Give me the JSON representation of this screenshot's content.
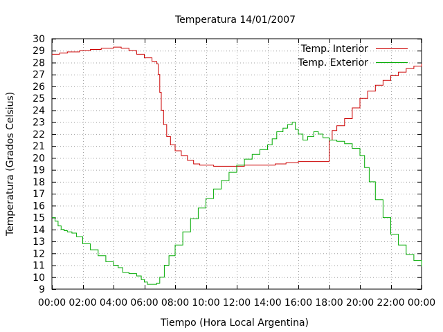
{
  "chart_data": {
    "type": "line",
    "title": "Temperatura 14/01/2007",
    "xlabel": "Tiempo (Hora Local Argentina)",
    "ylabel": "Temperatura (Grados Celsius)",
    "xlim": [
      0,
      24
    ],
    "ylim": [
      9,
      30
    ],
    "xticks": [
      0,
      2,
      4,
      6,
      8,
      10,
      12,
      14,
      16,
      18,
      20,
      22,
      24
    ],
    "x_tick_labels": [
      "00:00",
      "02:00",
      "04:00",
      "06:00",
      "08:00",
      "10:00",
      "12:00",
      "14:00",
      "16:00",
      "18:00",
      "20:00",
      "22:00",
      "00:00"
    ],
    "yticks": [
      9,
      10,
      11,
      12,
      13,
      14,
      15,
      16,
      17,
      18,
      19,
      20,
      21,
      22,
      23,
      24,
      25,
      26,
      27,
      28,
      29,
      30
    ],
    "y_tick_labels": [
      "9",
      "10",
      "11",
      "12",
      "13",
      "14",
      "15",
      "16",
      "17",
      "18",
      "19",
      "20",
      "21",
      "22",
      "23",
      "24",
      "25",
      "26",
      "27",
      "28",
      "29",
      "30"
    ],
    "grid": true,
    "legend_position": "top-right",
    "series": [
      {
        "name": "Temp. Interior",
        "color": "#cc0000",
        "step": true,
        "points": [
          [
            0,
            28.7
          ],
          [
            0.5,
            28.8
          ],
          [
            1,
            28.9
          ],
          [
            1.8,
            29.0
          ],
          [
            2.5,
            29.1
          ],
          [
            3.2,
            29.2
          ],
          [
            4.0,
            29.3
          ],
          [
            4.5,
            29.2
          ],
          [
            5.0,
            29.0
          ],
          [
            5.5,
            28.7
          ],
          [
            6.0,
            28.4
          ],
          [
            6.5,
            28.1
          ],
          [
            6.8,
            27.9
          ],
          [
            6.9,
            27.0
          ],
          [
            7.0,
            25.5
          ],
          [
            7.1,
            24.0
          ],
          [
            7.25,
            22.8
          ],
          [
            7.45,
            21.8
          ],
          [
            7.7,
            21.1
          ],
          [
            8.0,
            20.6
          ],
          [
            8.4,
            20.2
          ],
          [
            8.8,
            19.8
          ],
          [
            9.2,
            19.5
          ],
          [
            9.6,
            19.4
          ],
          [
            10.5,
            19.3
          ],
          [
            11.5,
            19.3
          ],
          [
            12.5,
            19.4
          ],
          [
            13.5,
            19.4
          ],
          [
            14.5,
            19.5
          ],
          [
            15.2,
            19.6
          ],
          [
            16.0,
            19.7
          ],
          [
            17.0,
            19.7
          ],
          [
            17.9,
            19.7
          ],
          [
            18.0,
            21.5
          ],
          [
            18.2,
            22.3
          ],
          [
            18.5,
            22.7
          ],
          [
            19.0,
            23.3
          ],
          [
            19.5,
            24.2
          ],
          [
            20.0,
            25.0
          ],
          [
            20.5,
            25.6
          ],
          [
            21.0,
            26.1
          ],
          [
            21.5,
            26.5
          ],
          [
            22.0,
            26.9
          ],
          [
            22.5,
            27.2
          ],
          [
            23.0,
            27.5
          ],
          [
            23.5,
            27.7
          ],
          [
            24.0,
            27.9
          ]
        ]
      },
      {
        "name": "Temp. Exterior",
        "color": "#00aa00",
        "step": true,
        "points": [
          [
            0,
            15.0
          ],
          [
            0.2,
            14.7
          ],
          [
            0.4,
            14.3
          ],
          [
            0.6,
            14.0
          ],
          [
            0.8,
            13.9
          ],
          [
            1.0,
            13.8
          ],
          [
            1.3,
            13.7
          ],
          [
            1.6,
            13.4
          ],
          [
            2.0,
            12.8
          ],
          [
            2.5,
            12.3
          ],
          [
            3.0,
            11.8
          ],
          [
            3.5,
            11.3
          ],
          [
            4.0,
            11.0
          ],
          [
            4.3,
            10.8
          ],
          [
            4.6,
            10.4
          ],
          [
            5.0,
            10.3
          ],
          [
            5.5,
            10.1
          ],
          [
            5.8,
            9.8
          ],
          [
            6.0,
            9.6
          ],
          [
            6.2,
            9.4
          ],
          [
            6.5,
            9.4
          ],
          [
            6.8,
            9.5
          ],
          [
            7.0,
            10.0
          ],
          [
            7.3,
            11.0
          ],
          [
            7.6,
            11.8
          ],
          [
            8.0,
            12.7
          ],
          [
            8.5,
            13.8
          ],
          [
            9.0,
            14.9
          ],
          [
            9.5,
            15.8
          ],
          [
            10.0,
            16.6
          ],
          [
            10.5,
            17.4
          ],
          [
            11.0,
            18.1
          ],
          [
            11.5,
            18.8
          ],
          [
            12.0,
            19.4
          ],
          [
            12.5,
            19.9
          ],
          [
            13.0,
            20.3
          ],
          [
            13.5,
            20.7
          ],
          [
            14.0,
            21.1
          ],
          [
            14.3,
            21.6
          ],
          [
            14.6,
            22.2
          ],
          [
            15.0,
            22.5
          ],
          [
            15.3,
            22.8
          ],
          [
            15.6,
            23.0
          ],
          [
            15.8,
            22.4
          ],
          [
            16.0,
            22.0
          ],
          [
            16.3,
            21.5
          ],
          [
            16.6,
            21.8
          ],
          [
            17.0,
            22.2
          ],
          [
            17.3,
            22.0
          ],
          [
            17.6,
            21.7
          ],
          [
            18.0,
            21.5
          ],
          [
            18.5,
            21.4
          ],
          [
            19.0,
            21.2
          ],
          [
            19.5,
            20.8
          ],
          [
            20.0,
            20.2
          ],
          [
            20.3,
            19.2
          ],
          [
            20.6,
            18.0
          ],
          [
            21.0,
            16.5
          ],
          [
            21.5,
            15.0
          ],
          [
            22.0,
            13.6
          ],
          [
            22.5,
            12.7
          ],
          [
            23.0,
            11.9
          ],
          [
            23.5,
            11.4
          ],
          [
            24.0,
            10.9
          ]
        ]
      }
    ]
  }
}
